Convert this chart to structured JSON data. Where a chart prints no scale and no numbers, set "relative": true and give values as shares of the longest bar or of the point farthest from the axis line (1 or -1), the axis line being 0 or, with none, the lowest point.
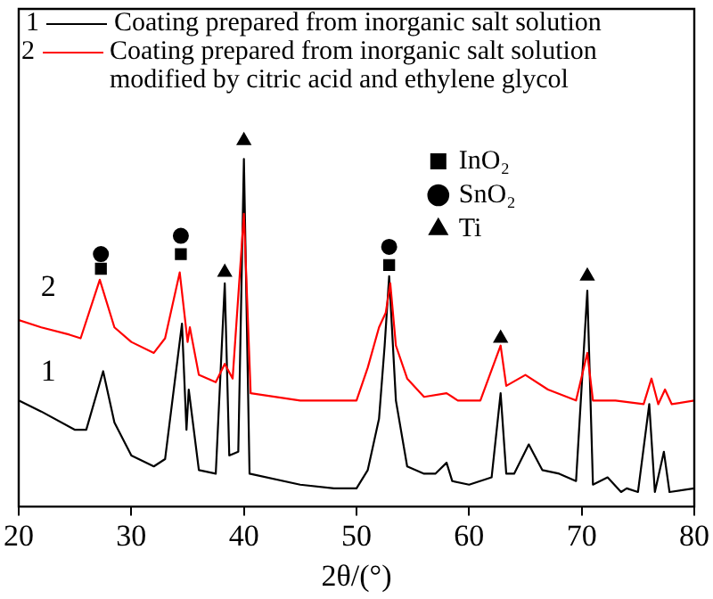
{
  "chart_data": {
    "type": "line",
    "relative": true,
    "xlabel": "2θ/(°)",
    "xlim": [
      20,
      80
    ],
    "xticks": [
      20,
      30,
      40,
      50,
      60,
      70,
      80
    ],
    "grid": false,
    "legend": "top",
    "marker": "none",
    "series": [
      {
        "name": "Coating prepared from inorganic salt solution",
        "color": "#000000",
        "x": [
          20,
          22,
          25,
          26,
          27.5,
          28.5,
          30,
          32,
          33,
          34.5,
          34.9,
          35.1,
          36,
          37.5,
          38.3,
          38.7,
          39.5,
          40,
          40.5,
          45,
          48,
          50,
          51,
          52,
          52.5,
          52.9,
          53.5,
          54.5,
          56,
          57,
          58,
          58.5,
          60,
          62,
          62.8,
          63.3,
          64,
          65.3,
          66.5,
          68,
          69.5,
          70.5,
          71,
          72.3,
          73.5,
          74,
          75,
          76,
          76.5,
          77.3,
          77.8,
          80
        ],
        "values": [
          0.29,
          0.26,
          0.21,
          0.21,
          0.37,
          0.23,
          0.14,
          0.11,
          0.13,
          0.5,
          0.21,
          0.32,
          0.1,
          0.09,
          0.61,
          0.14,
          0.15,
          0.95,
          0.09,
          0.06,
          0.05,
          0.05,
          0.1,
          0.24,
          0.44,
          0.63,
          0.29,
          0.11,
          0.09,
          0.09,
          0.12,
          0.07,
          0.06,
          0.08,
          0.31,
          0.09,
          0.09,
          0.17,
          0.1,
          0.09,
          0.07,
          0.59,
          0.06,
          0.08,
          0.04,
          0.05,
          0.04,
          0.28,
          0.04,
          0.15,
          0.04,
          0.05
        ]
      },
      {
        "name": "Coating prepared from inorganic salt solution modified by citric acid and ethylene glycol",
        "color": "#ff0000",
        "x": [
          20,
          22,
          24.5,
          25.5,
          27.2,
          28.5,
          30,
          32,
          33,
          34.3,
          35,
          35.2,
          36,
          37.5,
          38.3,
          39,
          40,
          40.6,
          45,
          48,
          50,
          51,
          52,
          52.6,
          53,
          53.5,
          54.5,
          56,
          58,
          59,
          61,
          62.8,
          63.3,
          65,
          67,
          69.5,
          70.5,
          71,
          73,
          75.5,
          76.2,
          76.8,
          77.4,
          78,
          80
        ],
        "values": [
          0.51,
          0.49,
          0.47,
          0.46,
          0.62,
          0.49,
          0.45,
          0.42,
          0.46,
          0.64,
          0.45,
          0.49,
          0.36,
          0.34,
          0.39,
          0.35,
          0.8,
          0.31,
          0.29,
          0.29,
          0.29,
          0.38,
          0.49,
          0.53,
          0.61,
          0.44,
          0.35,
          0.3,
          0.31,
          0.29,
          0.29,
          0.44,
          0.33,
          0.36,
          0.32,
          0.29,
          0.42,
          0.29,
          0.29,
          0.28,
          0.35,
          0.28,
          0.32,
          0.28,
          0.29
        ]
      },
      {
        "name": "InO₂",
        "type": "scatter",
        "marker": "square",
        "color": "#000000",
        "x": [
          27.3,
          34.4,
          52.9
        ],
        "values": [
          0.65,
          0.69,
          0.66
        ]
      },
      {
        "name": "SnO₂",
        "type": "scatter",
        "marker": "circle",
        "color": "#000000",
        "x": [
          27.3,
          34.4,
          52.9
        ],
        "values": [
          0.69,
          0.74,
          0.71
        ]
      },
      {
        "name": "Ti",
        "type": "scatter",
        "marker": "triangle",
        "color": "#000000",
        "x": [
          38.3,
          40,
          62.8,
          70.5
        ],
        "values": [
          0.64,
          1.0,
          0.46,
          0.63
        ]
      }
    ],
    "annotations": [
      "1",
      "2"
    ]
  }
}
